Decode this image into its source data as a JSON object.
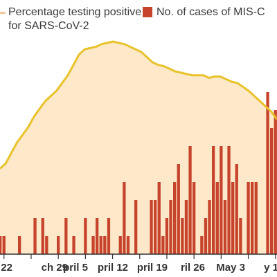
{
  "colors": {
    "area_fill": "#fde8c9",
    "line": "#e8c22a",
    "bar": "#c6432c",
    "axis": "#333333"
  },
  "legend": {
    "line_label_1": "Percentage testing positive",
    "line_label_2": "for SARS-CoV-2",
    "bar_label": "No. of cases of MIS-C"
  },
  "chart_data": {
    "type": "bar",
    "x_axis_labels": [
      "22",
      "ch 29",
      "pril 5",
      "pril 12",
      "pril 19",
      "ril 26",
      "May 3",
      "y 1"
    ],
    "series": [
      {
        "name": "No. of cases of MIS-C",
        "type": "bar",
        "values": [
          1,
          1,
          0,
          0,
          0,
          1,
          0,
          0,
          0,
          2,
          0,
          2,
          1,
          0,
          0,
          1,
          0,
          2,
          0,
          1,
          0,
          0,
          2,
          0,
          1,
          2,
          1,
          1,
          2,
          0,
          0,
          1,
          4,
          1,
          0,
          3,
          0,
          0,
          0,
          3,
          3,
          4,
          1,
          2,
          3,
          4,
          5,
          2,
          3,
          6,
          4,
          0,
          1,
          2,
          3,
          6,
          4,
          6,
          3,
          6,
          4,
          5,
          2,
          0,
          4,
          4,
          4,
          0,
          0,
          9,
          7,
          8,
          1
        ]
      },
      {
        "name": "Percentage testing positive for SARS-CoV-2",
        "type": "area",
        "values": [
          33,
          35,
          39,
          43,
          46,
          49,
          53,
          56,
          59,
          61,
          63,
          66,
          69,
          73,
          77,
          79,
          79.5,
          80,
          81,
          81.5,
          82,
          81.5,
          81,
          80,
          79,
          78,
          76,
          74,
          73,
          72.5,
          71.5,
          70.5,
          70,
          69.5,
          69,
          69,
          69,
          68,
          68.5,
          68.5,
          67.5,
          66.5,
          66,
          64.5,
          63,
          61,
          59,
          57,
          55,
          52
        ]
      }
    ]
  }
}
